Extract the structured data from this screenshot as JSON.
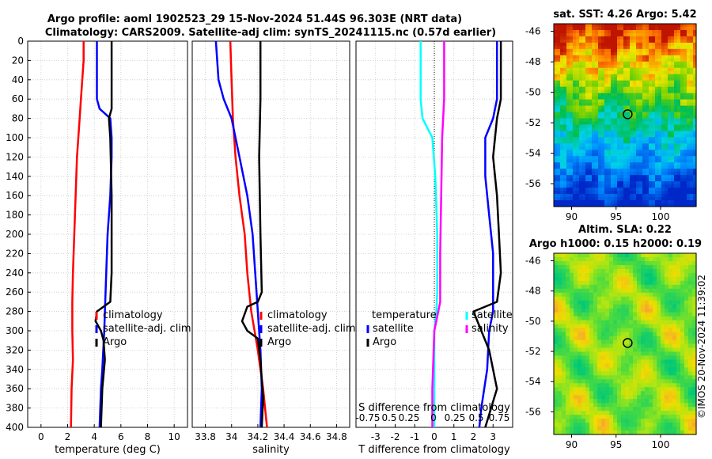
{
  "title": {
    "line1": "Argo profile: aoml 1902523_29 15-Nov-2024 51.44S 96.303E (NRT data)",
    "line2": "Climatology: CARS2009. Satellite-adj clim: synTS_20241115.nc (0.57d earlier)"
  },
  "watermark": "©IMOS 20-Nov-2024 11:39:02",
  "colors": {
    "climatology": "#ff0000",
    "satellite": "#0000ff",
    "argo": "#000000",
    "sat_t_diff": "#00ffff",
    "sat_s_diff": "#ff00ff"
  },
  "chart_data": [
    {
      "id": "temperature",
      "type": "line",
      "xlabel": "temperature (deg C)",
      "xlim": [
        -1,
        11
      ],
      "ylim": [
        0,
        400
      ],
      "xticks": [
        0,
        2,
        4,
        6,
        8,
        10
      ],
      "yticks": [
        0,
        20,
        40,
        60,
        80,
        100,
        120,
        140,
        160,
        180,
        200,
        220,
        240,
        260,
        280,
        300,
        320,
        340,
        360,
        380,
        400
      ],
      "legend": [
        "climatology",
        "satellite-adj. clim",
        "Argo"
      ],
      "series": [
        {
          "name": "climatology",
          "color": "#ff0000",
          "points": [
            [
              3.2,
              0
            ],
            [
              3.2,
              20
            ],
            [
              3.1,
              40
            ],
            [
              3.0,
              60
            ],
            [
              2.9,
              80
            ],
            [
              2.8,
              100
            ],
            [
              2.7,
              120
            ],
            [
              2.6,
              160
            ],
            [
              2.5,
              200
            ],
            [
              2.4,
              240
            ],
            [
              2.35,
              270
            ],
            [
              2.35,
              300
            ],
            [
              2.4,
              330
            ],
            [
              2.3,
              360
            ],
            [
              2.25,
              400
            ]
          ]
        },
        {
          "name": "satellite-adj. clim",
          "color": "#0000ff",
          "points": [
            [
              4.2,
              0
            ],
            [
              4.2,
              60
            ],
            [
              4.4,
              70
            ],
            [
              5.2,
              80
            ],
            [
              5.3,
              100
            ],
            [
              5.3,
              120
            ],
            [
              5.2,
              160
            ],
            [
              5.0,
              200
            ],
            [
              4.9,
              240
            ],
            [
              4.8,
              280
            ],
            [
              4.75,
              300
            ],
            [
              4.6,
              340
            ],
            [
              4.5,
              360
            ],
            [
              4.4,
              400
            ]
          ]
        },
        {
          "name": "Argo",
          "color": "#000000",
          "points": [
            [
              5.3,
              0
            ],
            [
              5.3,
              60
            ],
            [
              5.3,
              70
            ],
            [
              5.1,
              80
            ],
            [
              5.2,
              100
            ],
            [
              5.3,
              160
            ],
            [
              5.3,
              240
            ],
            [
              5.2,
              270
            ],
            [
              4.2,
              280
            ],
            [
              4.1,
              290
            ],
            [
              4.5,
              300
            ],
            [
              4.7,
              310
            ],
            [
              4.8,
              330
            ],
            [
              4.6,
              360
            ],
            [
              4.5,
              400
            ]
          ]
        }
      ]
    },
    {
      "id": "salinity",
      "type": "line",
      "xlabel": "salinity",
      "xlim": [
        33.7,
        34.9
      ],
      "ylim": [
        0,
        400
      ],
      "xticks": [
        33.8,
        34,
        34.2,
        34.4,
        34.6,
        34.8
      ],
      "xticklabels": [
        "33.8",
        "34",
        "34.2",
        "34.4",
        "34.6",
        "34.8"
      ],
      "legend": [
        "climatology",
        "satellite-adj. clim",
        "Argo"
      ],
      "series": [
        {
          "name": "climatology",
          "color": "#ff0000",
          "points": [
            [
              33.99,
              0
            ],
            [
              34.0,
              40
            ],
            [
              34.01,
              80
            ],
            [
              34.03,
              120
            ],
            [
              34.06,
              160
            ],
            [
              34.1,
              200
            ],
            [
              34.12,
              240
            ],
            [
              34.15,
              280
            ],
            [
              34.2,
              320
            ],
            [
              34.24,
              360
            ],
            [
              34.27,
              400
            ]
          ]
        },
        {
          "name": "satellite-adj. clim",
          "color": "#0000ff",
          "points": [
            [
              33.88,
              0
            ],
            [
              33.9,
              40
            ],
            [
              33.94,
              60
            ],
            [
              34.0,
              80
            ],
            [
              34.06,
              120
            ],
            [
              34.12,
              160
            ],
            [
              34.16,
              200
            ],
            [
              34.18,
              240
            ],
            [
              34.2,
              280
            ],
            [
              34.22,
              320
            ],
            [
              34.23,
              360
            ],
            [
              34.22,
              400
            ]
          ]
        },
        {
          "name": "Argo",
          "color": "#000000",
          "points": [
            [
              34.22,
              0
            ],
            [
              34.22,
              60
            ],
            [
              34.21,
              120
            ],
            [
              34.22,
              200
            ],
            [
              34.23,
              260
            ],
            [
              34.2,
              270
            ],
            [
              34.12,
              275
            ],
            [
              34.08,
              290
            ],
            [
              34.12,
              300
            ],
            [
              34.2,
              308
            ],
            [
              34.22,
              330
            ],
            [
              34.24,
              370
            ],
            [
              34.23,
              400
            ]
          ]
        }
      ]
    },
    {
      "id": "difference",
      "type": "line",
      "xlabel": "T difference from climatology",
      "xlim": [
        -4,
        4
      ],
      "ylim": [
        0,
        400
      ],
      "xticks": [
        -3,
        -2,
        -1,
        0,
        1,
        2,
        3
      ],
      "top_label": "S difference from climatology",
      "top_ticks": [
        "-0.75",
        "0.5",
        "0.25",
        "0",
        "0.25",
        "0.5",
        "0.75"
      ],
      "legend_temperature": {
        "title": "temperature",
        "entries": [
          "satellite",
          "Argo"
        ]
      },
      "legend_salinity": {
        "title": "salinity",
        "entries": [
          "satellite",
          "salinity"
        ]
      },
      "series": [
        {
          "name": "temperature satellite",
          "color": "#00ffff",
          "points": [
            [
              -0.7,
              0
            ],
            [
              -0.7,
              60
            ],
            [
              -0.6,
              80
            ],
            [
              -0.1,
              100
            ],
            [
              0.05,
              140
            ],
            [
              0.15,
              200
            ],
            [
              0.15,
              260
            ],
            [
              0.1,
              280
            ],
            [
              0,
              300
            ],
            [
              0,
              400
            ]
          ]
        },
        {
          "name": "salinity satellite",
          "color": "#ff00ff",
          "points": [
            [
              0.5,
              0
            ],
            [
              0.5,
              60
            ],
            [
              0.4,
              100
            ],
            [
              0.35,
              160
            ],
            [
              0.3,
              220
            ],
            [
              0.3,
              270
            ],
            [
              0.2,
              280
            ],
            [
              0.0,
              300
            ],
            [
              -0.1,
              360
            ],
            [
              -0.1,
              400
            ]
          ]
        },
        {
          "name": "temperature Argo",
          "color": "#0000ff",
          "points": [
            [
              3.2,
              0
            ],
            [
              3.2,
              60
            ],
            [
              3.0,
              80
            ],
            [
              2.6,
              100
            ],
            [
              2.6,
              140
            ],
            [
              2.8,
              180
            ],
            [
              3.0,
              220
            ],
            [
              3.0,
              280
            ],
            [
              2.8,
              300
            ],
            [
              2.7,
              340
            ],
            [
              2.4,
              380
            ],
            [
              2.3,
              400
            ]
          ]
        },
        {
          "name": "salinity Argo",
          "color": "#000000",
          "points": [
            [
              3.4,
              0
            ],
            [
              3.4,
              60
            ],
            [
              3.2,
              80
            ],
            [
              3.0,
              120
            ],
            [
              3.2,
              160
            ],
            [
              3.3,
              200
            ],
            [
              3.4,
              240
            ],
            [
              3.2,
              270
            ],
            [
              2.0,
              280
            ],
            [
              2.4,
              300
            ],
            [
              2.8,
              320
            ],
            [
              3.2,
              360
            ],
            [
              2.6,
              400
            ]
          ]
        }
      ]
    },
    {
      "id": "sst_map",
      "type": "heatmap",
      "title": "sat. SST: 4.26 Argo: 5.42",
      "xlim": [
        88,
        104
      ],
      "ylim": [
        -57.5,
        -45.5
      ],
      "xticks": [
        90,
        95,
        100
      ],
      "yticks": [
        -46,
        -48,
        -50,
        -52,
        -54,
        -56
      ],
      "marker": [
        96.3,
        -51.44
      ]
    },
    {
      "id": "sla_map",
      "type": "heatmap",
      "title": "Altim. SLA: 0.22",
      "subtitle": "Argo h1000: 0.15 h2000: 0.19",
      "xlim": [
        88,
        104
      ],
      "ylim": [
        -57.5,
        -45.5
      ],
      "xticks": [
        90,
        95,
        100
      ],
      "yticks": [
        -46,
        -48,
        -50,
        -52,
        -54,
        -56
      ],
      "marker": [
        96.3,
        -51.44
      ]
    }
  ]
}
